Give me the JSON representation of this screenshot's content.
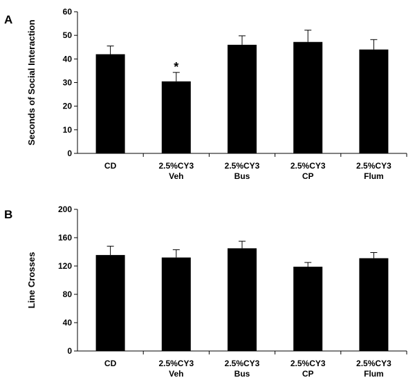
{
  "chart_data": [
    {
      "type": "bar",
      "panel_label": "A",
      "categories": [
        [
          "CD"
        ],
        [
          "2.5%CY3",
          "Veh"
        ],
        [
          "2.5%CY3",
          "Bus"
        ],
        [
          "2.5%CY3",
          "CP"
        ],
        [
          "2.5%CY3",
          "Flum"
        ]
      ],
      "values": [
        42,
        30.5,
        46,
        47.2,
        44
      ],
      "errors": [
        3.5,
        3.8,
        3.8,
        5.0,
        4.2
      ],
      "annotations": [
        "",
        "*",
        "",
        "",
        ""
      ],
      "ylabel": "Seconds of Social Interaction",
      "ylim": [
        0,
        60
      ],
      "yticks": [
        0,
        10,
        20,
        30,
        40,
        50,
        60
      ],
      "grid": false,
      "bar_color": "#000000"
    },
    {
      "type": "bar",
      "panel_label": "B",
      "categories": [
        [
          "CD"
        ],
        [
          "2.5%CY3",
          "Veh"
        ],
        [
          "2.5%CY3",
          "Bus"
        ],
        [
          "2.5%CY3",
          "CP"
        ],
        [
          "2.5%CY3",
          "Flum"
        ]
      ],
      "values": [
        135.5,
        132,
        145,
        119,
        131
      ],
      "errors": [
        12.5,
        11,
        10,
        6,
        8
      ],
      "annotations": [
        "",
        "",
        "",
        "",
        ""
      ],
      "ylabel": "Line Crosses",
      "ylim": [
        0,
        200
      ],
      "yticks": [
        0,
        40,
        80,
        120,
        160,
        200
      ],
      "grid": false,
      "bar_color": "#000000"
    }
  ]
}
